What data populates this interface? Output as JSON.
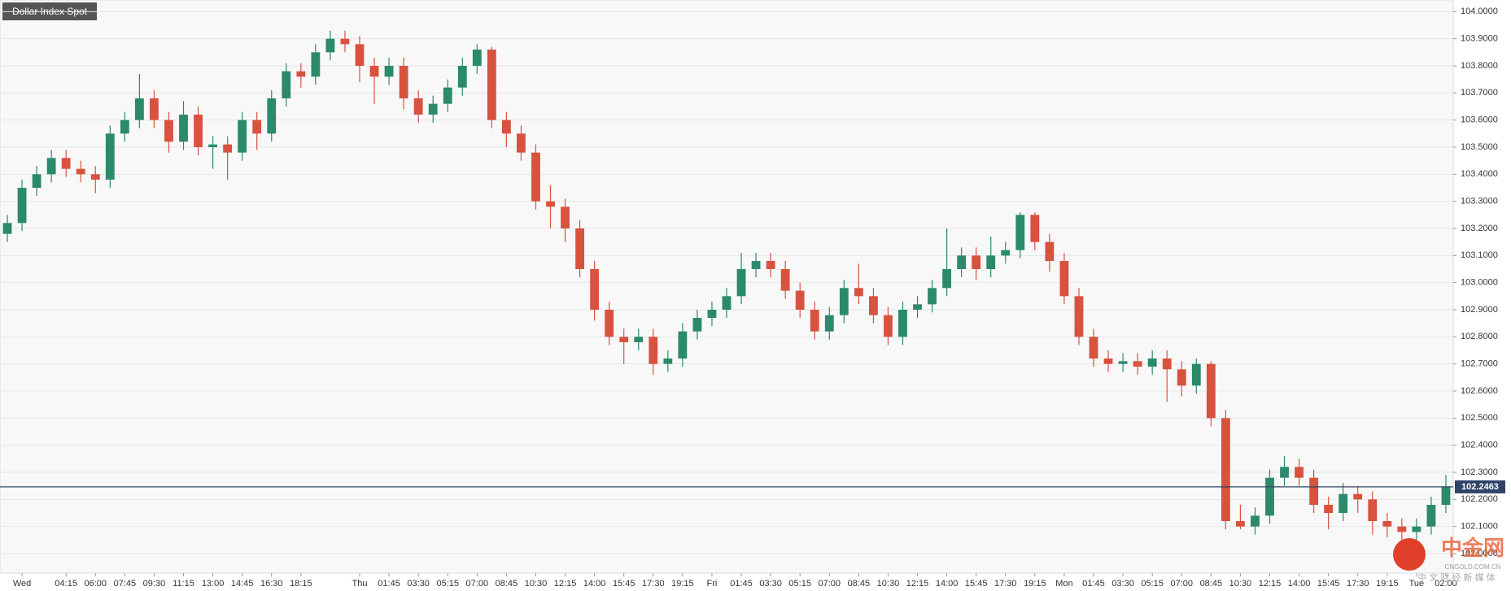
{
  "chart_data": {
    "type": "candlestick",
    "title": "Dollar Index Spot",
    "categories": [
      null,
      "Wed",
      null,
      null,
      "04:15",
      null,
      "06:00",
      null,
      "07:45",
      null,
      "09:30",
      null,
      "11:15",
      null,
      "13:00",
      null,
      "14:45",
      null,
      "16:30",
      null,
      "18:15",
      null,
      null,
      null,
      "Thu",
      null,
      "01:45",
      null,
      "03:30",
      null,
      "05:15",
      null,
      "07:00",
      null,
      "08:45",
      null,
      "10:30",
      null,
      "12:15",
      null,
      "14:00",
      null,
      "15:45",
      null,
      "17:30",
      null,
      "19:15",
      null,
      "Fri",
      null,
      "01:45",
      null,
      "03:30",
      null,
      "05:15",
      null,
      "07:00",
      null,
      "08:45",
      null,
      "10:30",
      null,
      "12:15",
      null,
      "14:00",
      null,
      "15:45",
      null,
      "17:30",
      null,
      "19:15",
      null,
      "Mon",
      null,
      "01:45",
      null,
      "03:30",
      null,
      "05:15",
      null,
      "07:00",
      null,
      "08:45",
      null,
      "10:30",
      null,
      "12:15",
      null,
      "14:00",
      null,
      "15:45",
      null,
      "17:30",
      null,
      "19:15",
      null,
      "Tue",
      null,
      "02:00"
    ],
    "open": [
      103.18,
      103.22,
      103.35,
      103.4,
      103.46,
      103.42,
      103.4,
      103.38,
      103.55,
      103.6,
      103.68,
      103.6,
      103.52,
      103.62,
      103.5,
      103.51,
      103.48,
      103.6,
      103.55,
      103.68,
      103.78,
      103.76,
      103.85,
      103.9,
      103.88,
      103.8,
      103.76,
      103.8,
      103.68,
      103.62,
      103.66,
      103.72,
      103.8,
      103.86,
      103.6,
      103.55,
      103.48,
      103.3,
      103.28,
      103.2,
      103.05,
      102.9,
      102.8,
      102.78,
      102.8,
      102.7,
      102.72,
      102.82,
      102.87,
      102.9,
      102.95,
      103.05,
      103.08,
      103.05,
      102.97,
      102.9,
      102.82,
      102.88,
      102.98,
      102.95,
      102.88,
      102.8,
      102.9,
      102.92,
      102.98,
      103.05,
      103.1,
      103.05,
      103.1,
      103.12,
      103.25,
      103.15,
      103.08,
      102.95,
      102.8,
      102.72,
      102.7,
      102.71,
      102.69,
      102.72,
      102.68,
      102.62,
      102.7,
      102.5,
      102.12,
      102.1,
      102.14,
      102.28,
      102.32,
      102.28,
      102.18,
      102.15,
      102.22,
      102.2,
      102.12,
      102.1,
      102.08,
      102.1,
      102.18
    ],
    "high": [
      103.25,
      103.38,
      103.43,
      103.49,
      103.49,
      103.45,
      103.43,
      103.58,
      103.63,
      103.77,
      103.71,
      103.63,
      103.67,
      103.65,
      103.54,
      103.54,
      103.63,
      103.63,
      103.71,
      103.81,
      103.81,
      103.88,
      103.93,
      103.93,
      103.91,
      103.83,
      103.83,
      103.83,
      103.71,
      103.69,
      103.75,
      103.83,
      103.88,
      103.87,
      103.63,
      103.58,
      103.51,
      103.36,
      103.31,
      103.23,
      103.08,
      102.93,
      102.83,
      102.83,
      102.83,
      102.75,
      102.85,
      102.9,
      102.93,
      102.98,
      103.11,
      103.11,
      103.11,
      103.08,
      103.0,
      102.93,
      102.91,
      103.01,
      103.07,
      102.98,
      102.91,
      102.93,
      102.95,
      103.01,
      103.2,
      103.13,
      103.13,
      103.17,
      103.15,
      103.26,
      103.26,
      103.18,
      103.11,
      102.98,
      102.83,
      102.75,
      102.74,
      102.74,
      102.75,
      102.75,
      102.71,
      102.72,
      102.71,
      102.53,
      102.18,
      102.17,
      102.31,
      102.36,
      102.35,
      102.31,
      102.21,
      102.26,
      102.25,
      102.23,
      102.15,
      102.13,
      102.13,
      102.21,
      102.29
    ],
    "low": [
      103.15,
      103.19,
      103.32,
      103.37,
      103.39,
      103.37,
      103.33,
      103.35,
      103.52,
      103.57,
      103.57,
      103.48,
      103.49,
      103.47,
      103.42,
      103.38,
      103.45,
      103.49,
      103.52,
      103.65,
      103.72,
      103.73,
      103.82,
      103.85,
      103.74,
      103.66,
      103.73,
      103.64,
      103.59,
      103.59,
      103.63,
      103.69,
      103.77,
      103.57,
      103.5,
      103.45,
      103.27,
      103.2,
      103.15,
      103.02,
      102.86,
      102.77,
      102.7,
      102.75,
      102.66,
      102.67,
      102.69,
      102.79,
      102.84,
      102.87,
      102.92,
      103.02,
      103.02,
      102.94,
      102.87,
      102.79,
      102.79,
      102.85,
      102.92,
      102.85,
      102.77,
      102.77,
      102.87,
      102.89,
      102.95,
      103.02,
      103.01,
      103.02,
      103.07,
      103.09,
      103.12,
      103.04,
      102.92,
      102.77,
      102.69,
      102.67,
      102.67,
      102.66,
      102.66,
      102.56,
      102.58,
      102.59,
      102.47,
      102.09,
      102.09,
      102.07,
      102.11,
      102.25,
      102.25,
      102.15,
      102.09,
      102.12,
      102.15,
      102.07,
      102.06,
      102.05,
      102.05,
      102.07,
      102.15
    ],
    "close": [
      103.22,
      103.35,
      103.4,
      103.46,
      103.42,
      103.4,
      103.38,
      103.55,
      103.6,
      103.68,
      103.6,
      103.52,
      103.62,
      103.5,
      103.51,
      103.48,
      103.6,
      103.55,
      103.68,
      103.78,
      103.76,
      103.85,
      103.9,
      103.88,
      103.8,
      103.76,
      103.8,
      103.68,
      103.62,
      103.66,
      103.72,
      103.8,
      103.86,
      103.6,
      103.55,
      103.48,
      103.3,
      103.28,
      103.2,
      103.05,
      102.9,
      102.8,
      102.78,
      102.8,
      102.7,
      102.72,
      102.82,
      102.87,
      102.9,
      102.95,
      103.05,
      103.08,
      103.05,
      102.97,
      102.9,
      102.82,
      102.88,
      102.98,
      102.95,
      102.88,
      102.8,
      102.9,
      102.92,
      102.98,
      103.05,
      103.1,
      103.05,
      103.1,
      103.12,
      103.25,
      103.15,
      103.08,
      102.95,
      102.8,
      102.72,
      102.7,
      102.71,
      102.69,
      102.72,
      102.68,
      102.62,
      102.7,
      102.5,
      102.12,
      102.1,
      102.14,
      102.28,
      102.32,
      102.28,
      102.18,
      102.15,
      102.22,
      102.2,
      102.12,
      102.1,
      102.08,
      102.1,
      102.18,
      102.2463
    ],
    "up_color": "#2b8a6c",
    "down_color": "#d8523f",
    "last_price": 102.2463,
    "last_price_color": "#2f4468",
    "ylim": [
      101.928,
      104.043
    ],
    "yticks": [
      {
        "value": 102.0,
        "label": "102.0000"
      },
      {
        "value": 102.1,
        "label": "102.1000"
      },
      {
        "value": 102.2,
        "label": "102.2000"
      },
      {
        "value": 102.3,
        "label": "102.3000"
      },
      {
        "value": 102.4,
        "label": "102.4000"
      },
      {
        "value": 102.5,
        "label": "102.5000"
      },
      {
        "value": 102.6,
        "label": "102.6000"
      },
      {
        "value": 102.7,
        "label": "102.7000"
      },
      {
        "value": 102.8,
        "label": "102.8000"
      },
      {
        "value": 102.9,
        "label": "102.9000"
      },
      {
        "value": 103.0,
        "label": "103.0000"
      },
      {
        "value": 103.1,
        "label": "103.1000"
      },
      {
        "value": 103.2,
        "label": "103.2000"
      },
      {
        "value": 103.3,
        "label": "103.3000"
      },
      {
        "value": 103.4,
        "label": "103.4000"
      },
      {
        "value": 103.5,
        "label": "103.5000"
      },
      {
        "value": 103.6,
        "label": "103.6000"
      },
      {
        "value": 103.7,
        "label": "103.7000"
      },
      {
        "value": 103.8,
        "label": "103.8000"
      },
      {
        "value": 103.9,
        "label": "103.9000"
      },
      {
        "value": 104.0,
        "label": "104.0000"
      }
    ],
    "grid": true
  },
  "watermark": {
    "brand": "中金网",
    "site": "CNGOLD.COM.CN",
    "tagline": "中 文 财 经 新 媒 体"
  }
}
